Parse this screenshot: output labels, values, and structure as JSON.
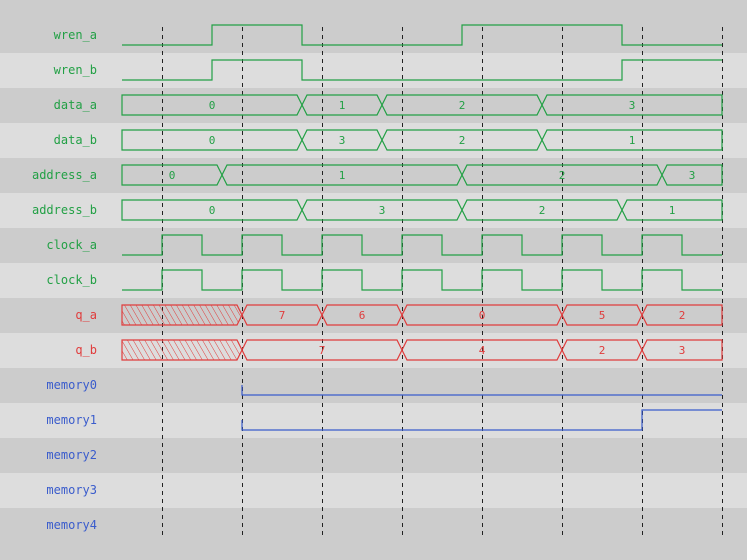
{
  "colors": {
    "row_dark": "#cccccc",
    "row_light": "#dddddd",
    "input": "#22a045",
    "output": "#e03c3c",
    "memory": "#3a5ccc",
    "grid": "#222222"
  },
  "time_grid": {
    "start": 0,
    "end": 15,
    "dashed_at": [
      1,
      3,
      5,
      7,
      9,
      11,
      13,
      15
    ]
  },
  "signals": [
    {
      "name": "wren_a",
      "kind": "bit",
      "group": "input",
      "init": 0,
      "edges": [
        [
          2.25,
          1
        ],
        [
          4.5,
          0
        ],
        [
          8.5,
          1
        ],
        [
          12.5,
          0
        ]
      ]
    },
    {
      "name": "wren_b",
      "kind": "bit",
      "group": "input",
      "init": 0,
      "edges": [
        [
          2.25,
          1
        ],
        [
          4.5,
          0
        ],
        [
          12.5,
          1
        ]
      ]
    },
    {
      "name": "data_a",
      "kind": "bus",
      "group": "input",
      "segments": [
        [
          0,
          4.5,
          "0"
        ],
        [
          4.5,
          6.5,
          "1"
        ],
        [
          6.5,
          10.5,
          "2"
        ],
        [
          10.5,
          15,
          "3"
        ]
      ]
    },
    {
      "name": "data_b",
      "kind": "bus",
      "group": "input",
      "segments": [
        [
          0,
          4.5,
          "0"
        ],
        [
          4.5,
          6.5,
          "3"
        ],
        [
          6.5,
          10.5,
          "2"
        ],
        [
          10.5,
          15,
          "1"
        ]
      ]
    },
    {
      "name": "address_a",
      "kind": "bus",
      "group": "input",
      "segments": [
        [
          0,
          2.5,
          "0"
        ],
        [
          2.5,
          8.5,
          "1"
        ],
        [
          8.5,
          13.5,
          "2"
        ],
        [
          13.5,
          15,
          "3"
        ]
      ]
    },
    {
      "name": "address_b",
      "kind": "bus",
      "group": "input",
      "segments": [
        [
          0,
          4.5,
          "0"
        ],
        [
          4.5,
          8.5,
          "3"
        ],
        [
          8.5,
          12.5,
          "2"
        ],
        [
          12.5,
          15,
          "1"
        ]
      ]
    },
    {
      "name": "clock_a",
      "kind": "clock",
      "group": "input",
      "init": 0,
      "first_edge": 1,
      "half_period": 1
    },
    {
      "name": "clock_b",
      "kind": "clock",
      "group": "input",
      "init": 0,
      "first_edge": 1,
      "half_period": 1
    },
    {
      "name": "q_a",
      "kind": "bus",
      "group": "output",
      "segments": [
        [
          0,
          3,
          "X"
        ],
        [
          3,
          5,
          "7"
        ],
        [
          5,
          7,
          "6"
        ],
        [
          7,
          11,
          "0"
        ],
        [
          11,
          13,
          "5"
        ],
        [
          13,
          15,
          "2"
        ]
      ]
    },
    {
      "name": "q_b",
      "kind": "bus",
      "group": "output",
      "segments": [
        [
          0,
          3,
          "X"
        ],
        [
          3,
          7,
          "7"
        ],
        [
          7,
          11,
          "4"
        ],
        [
          11,
          13,
          "2"
        ],
        [
          13,
          15,
          "3"
        ]
      ]
    },
    {
      "name": "memory0",
      "kind": "bit",
      "group": "memory",
      "start": 3,
      "init": 0,
      "edges": []
    },
    {
      "name": "memory1",
      "kind": "bit",
      "group": "memory",
      "start": 3,
      "init": 0,
      "edges": [
        [
          13,
          1
        ]
      ]
    },
    {
      "name": "memory2",
      "kind": "empty",
      "group": "memory"
    },
    {
      "name": "memory3",
      "kind": "empty",
      "group": "memory"
    },
    {
      "name": "memory4",
      "kind": "empty",
      "group": "memory"
    }
  ]
}
